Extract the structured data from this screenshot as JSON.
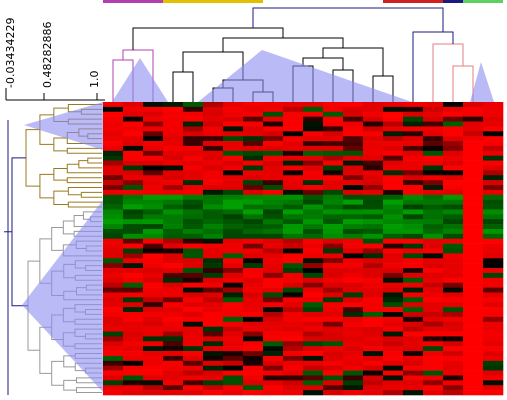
{
  "chart_data": {
    "type": "heatmap",
    "title": "",
    "xlabel": "",
    "ylabel": "",
    "scale_labels": [
      "-0.03434229",
      "0.48282886",
      "1.0"
    ],
    "color_scale": {
      "low": "#00a000",
      "mid": "#000000",
      "high": "#ff0000"
    },
    "n_columns": 20,
    "n_rows": 60,
    "column_groups": [
      {
        "color": "#b040b0",
        "count": 3
      },
      {
        "color": "#e0c000",
        "count": 5
      },
      {
        "color": "#ffffff",
        "count": 6
      },
      {
        "color": "#d02020",
        "count": 3
      },
      {
        "color": "#1a1a80",
        "count": 1
      },
      {
        "color": "#60d060",
        "count": 2
      }
    ],
    "row_clusters": [
      {
        "color": "#9a7a20",
        "rows": [
          0,
          22
        ]
      },
      {
        "color": "#999999",
        "rows": [
          22,
          60
        ]
      }
    ],
    "highlight_color": "#8c8cf0"
  }
}
